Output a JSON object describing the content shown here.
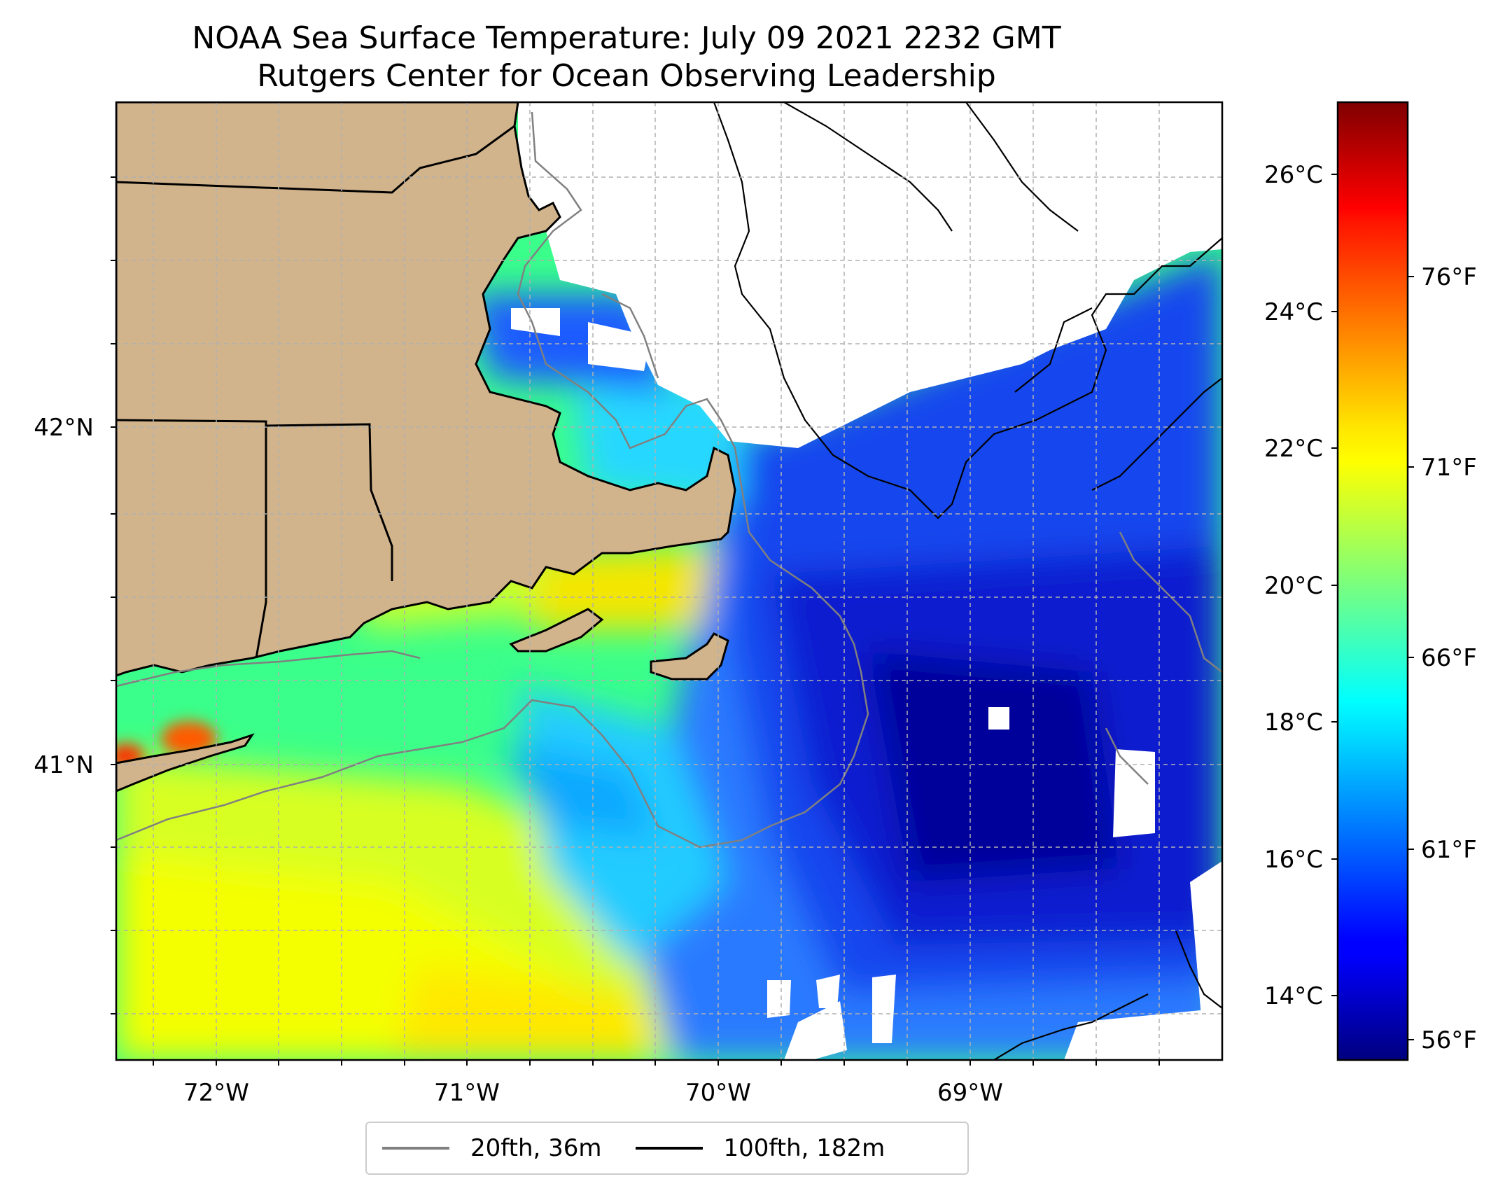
{
  "title": {
    "line1": "NOAA Sea Surface Temperature: July 09 2021 2232 GMT",
    "line2": "Rutgers Center for Ocean Observing Leadership"
  },
  "map": {
    "lon_labels": [
      "72°W",
      "71°W",
      "70°W",
      "69°W"
    ],
    "lat_labels": [
      "42°N",
      "41°N"
    ],
    "colors": {
      "land": "#d2b48c",
      "no_data": "#ffffff",
      "isobath_20fth": "#808080",
      "isobath_100fth": "#000000",
      "gridlines": "#b0b0b0"
    },
    "grid": "dashed"
  },
  "colorbar": {
    "celsius_labels": [
      "26°C",
      "24°C",
      "22°C",
      "20°C",
      "18°C",
      "16°C",
      "14°C"
    ],
    "fahrenheit_labels": [
      "76°F",
      "71°F",
      "66°F",
      "61°F",
      "56°F"
    ],
    "colormap": "jet",
    "range_celsius": [
      13,
      27
    ]
  },
  "legend": {
    "items": [
      {
        "label": "20fth, 36m",
        "color": "#808080"
      },
      {
        "label": "100fth, 182m",
        "color": "#000000"
      }
    ]
  }
}
